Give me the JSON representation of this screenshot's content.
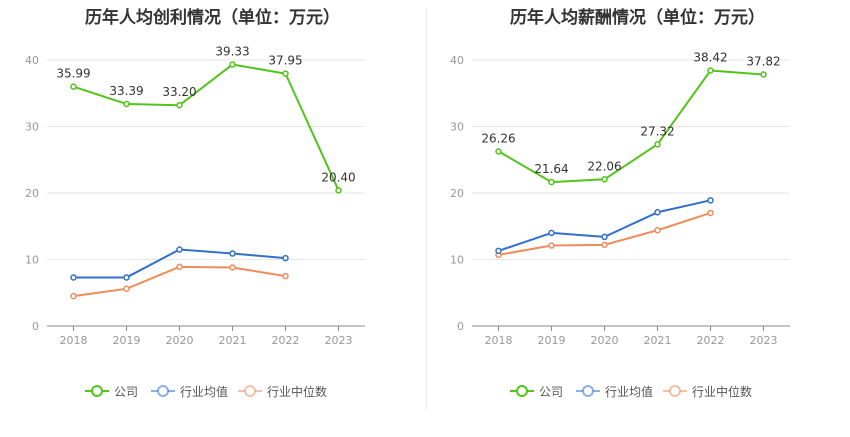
{
  "colors": {
    "company": "#52c41a",
    "industry_avg": "#3370cc",
    "industry_median": "#f08c5a"
  },
  "legend": [
    "公司",
    "行业均值",
    "行业中位数"
  ],
  "chart_data": [
    {
      "type": "line",
      "title": "历年人均创利情况（单位：万元）",
      "categories": [
        "2018",
        "2019",
        "2020",
        "2021",
        "2022",
        "2023"
      ],
      "yticks": [
        "0",
        "10",
        "20",
        "30",
        "40"
      ],
      "ylim": [
        0,
        40
      ],
      "grid": true,
      "legend_position": "bottom",
      "series": [
        {
          "name": "公司",
          "values": [
            35.99,
            33.39,
            33.2,
            39.33,
            37.95,
            20.4
          ],
          "labels": [
            "35.99",
            "33.39",
            "33.20",
            "39.33",
            "37.95",
            "20.40"
          ]
        },
        {
          "name": "行业均值",
          "values": [
            7.3,
            7.3,
            11.5,
            10.9,
            10.2,
            null
          ]
        },
        {
          "name": "行业中位数",
          "values": [
            4.5,
            5.6,
            8.9,
            8.8,
            7.5,
            null
          ]
        }
      ]
    },
    {
      "type": "line",
      "title": "历年人均薪酬情况（单位：万元）",
      "categories": [
        "2018",
        "2019",
        "2020",
        "2021",
        "2022",
        "2023"
      ],
      "yticks": [
        "0",
        "10",
        "20",
        "30",
        "40"
      ],
      "ylim": [
        0,
        40
      ],
      "grid": true,
      "legend_position": "bottom",
      "series": [
        {
          "name": "公司",
          "values": [
            26.26,
            21.64,
            22.06,
            27.32,
            38.42,
            37.82
          ],
          "labels": [
            "26.26",
            "21.64",
            "22.06",
            "27.32",
            "38.42",
            "37.82"
          ]
        },
        {
          "name": "行业均值",
          "values": [
            11.3,
            14.0,
            13.4,
            17.1,
            18.9,
            null
          ]
        },
        {
          "name": "行业中位数",
          "values": [
            10.7,
            12.1,
            12.2,
            14.4,
            17.0,
            null
          ]
        }
      ]
    }
  ]
}
